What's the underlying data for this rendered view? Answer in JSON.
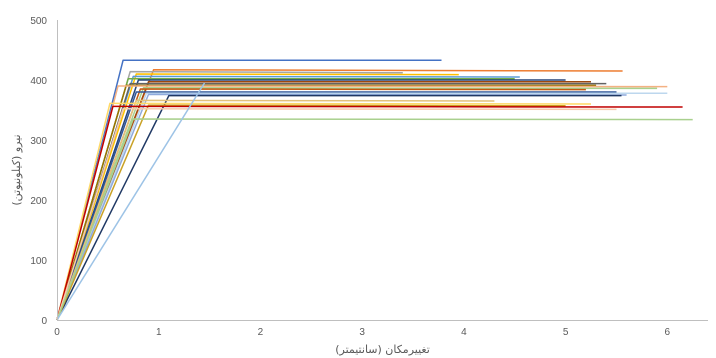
{
  "chart_data": {
    "type": "line",
    "title": "",
    "xlabel": "تغییرمکان (سانتیمتر)",
    "ylabel": "نیرو (کیلونیوتن)",
    "xlim": [
      0,
      6.4
    ],
    "ylim": [
      0,
      500
    ],
    "x_ticks": [
      "0",
      "1",
      "2",
      "3",
      "4",
      "5",
      "6"
    ],
    "y_ticks": [
      "0",
      "100",
      "200",
      "300",
      "400",
      "500"
    ],
    "grid": {
      "horizontal": false,
      "vertical": false
    },
    "legend": "none",
    "series": [
      {
        "color": "#4472C4",
        "points": [
          [
            0,
            0
          ],
          [
            0.65,
            433
          ],
          [
            3.78,
            433
          ]
        ]
      },
      {
        "color": "#ED7D31",
        "points": [
          [
            0,
            0
          ],
          [
            0.95,
            417
          ],
          [
            5.56,
            415
          ]
        ]
      },
      {
        "color": "#A5A5A5",
        "points": [
          [
            0,
            0
          ],
          [
            0.72,
            414
          ],
          [
            3.4,
            412
          ]
        ]
      },
      {
        "color": "#FFC000",
        "points": [
          [
            0,
            0
          ],
          [
            0.78,
            410
          ],
          [
            3.95,
            409
          ]
        ]
      },
      {
        "color": "#5B9BD5",
        "points": [
          [
            0,
            0
          ],
          [
            0.75,
            406
          ],
          [
            4.55,
            405
          ]
        ]
      },
      {
        "color": "#70AD47",
        "points": [
          [
            0,
            0
          ],
          [
            0.7,
            402
          ],
          [
            4.5,
            402
          ]
        ]
      },
      {
        "color": "#264478",
        "points": [
          [
            0,
            0
          ],
          [
            0.8,
            400
          ],
          [
            5.0,
            400
          ]
        ]
      },
      {
        "color": "#9E480E",
        "points": [
          [
            0,
            0
          ],
          [
            0.9,
            397
          ],
          [
            5.25,
            397
          ]
        ]
      },
      {
        "color": "#636363",
        "points": [
          [
            0,
            0
          ],
          [
            0.72,
            394
          ],
          [
            5.4,
            394
          ]
        ]
      },
      {
        "color": "#997300",
        "points": [
          [
            0,
            0
          ],
          [
            0.68,
            391
          ],
          [
            5.3,
            391
          ]
        ]
      },
      {
        "color": "#F4B183",
        "points": [
          [
            0,
            0
          ],
          [
            0.6,
            390
          ],
          [
            6.0,
            389
          ]
        ]
      },
      {
        "color": "#A9D18E",
        "points": [
          [
            0,
            0
          ],
          [
            0.85,
            387
          ],
          [
            5.9,
            386
          ]
        ]
      },
      {
        "color": "#C55A11",
        "points": [
          [
            0,
            0
          ],
          [
            0.82,
            385
          ],
          [
            5.2,
            384
          ]
        ]
      },
      {
        "color": "#2F5597",
        "points": [
          [
            0,
            0
          ],
          [
            0.78,
            380
          ],
          [
            5.5,
            380
          ]
        ]
      },
      {
        "color": "#BDD7EE",
        "points": [
          [
            0,
            0
          ],
          [
            0.88,
            378
          ],
          [
            6.0,
            378
          ]
        ]
      },
      {
        "color": "#8FAADC",
        "points": [
          [
            0,
            0
          ],
          [
            0.9,
            376
          ],
          [
            5.6,
            375
          ]
        ]
      },
      {
        "color": "#1F3864",
        "points": [
          [
            0,
            0
          ],
          [
            1.1,
            374
          ],
          [
            5.55,
            374
          ]
        ]
      },
      {
        "color": "#E2C27A",
        "points": [
          [
            0,
            0
          ],
          [
            0.78,
            366
          ],
          [
            4.3,
            365
          ]
        ]
      },
      {
        "color": "#FFD966",
        "points": [
          [
            0,
            0
          ],
          [
            0.52,
            361
          ],
          [
            5.25,
            360
          ]
        ]
      },
      {
        "color": "#C9A227",
        "points": [
          [
            0,
            0
          ],
          [
            0.9,
            358
          ],
          [
            5.0,
            357
          ]
        ]
      },
      {
        "color": "#C00000",
        "points": [
          [
            0,
            0
          ],
          [
            0.55,
            356
          ],
          [
            6.15,
            355
          ]
        ]
      },
      {
        "color": "#F8CBAD",
        "points": [
          [
            0,
            0
          ],
          [
            0.65,
            352
          ],
          [
            5.5,
            351
          ]
        ]
      },
      {
        "color": "#A9D08E",
        "points": [
          [
            0,
            0
          ],
          [
            0.75,
            335
          ],
          [
            6.25,
            334
          ]
        ]
      },
      {
        "color": "#9DC3E6",
        "points": [
          [
            0,
            0
          ],
          [
            1.45,
            395
          ],
          [
            1.45,
            395
          ]
        ]
      }
    ]
  }
}
